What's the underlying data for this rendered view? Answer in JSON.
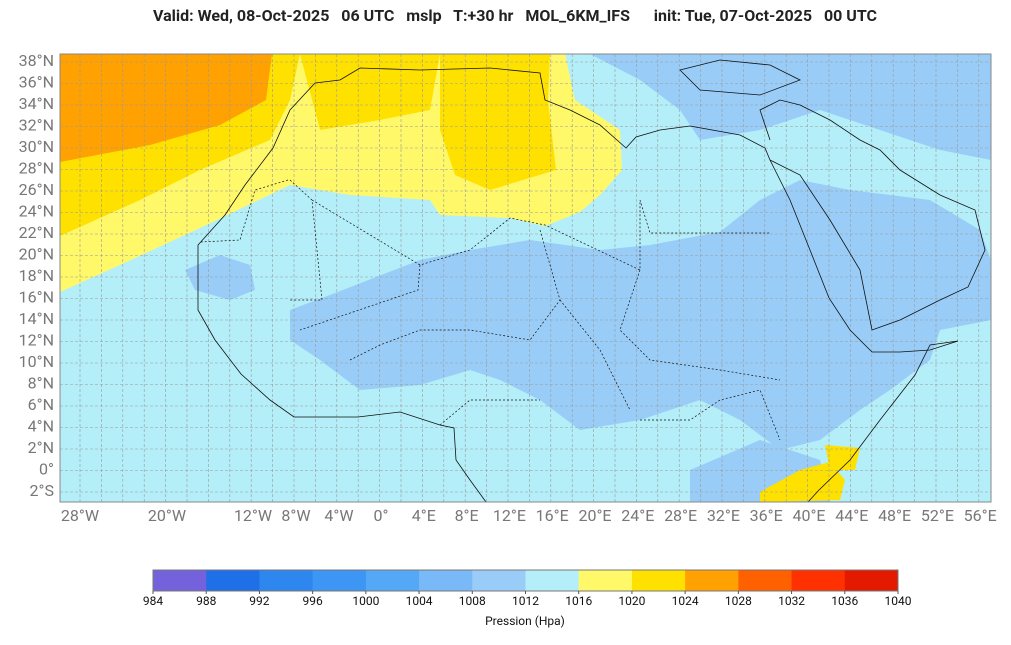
{
  "header": {
    "title": "Valid: Wed, 08-Oct-2025   06 UTC   mslp   T:+30 hr   MOL_6KM_IFS      init: Tue, 07-Oct-2025   00 UTC"
  },
  "map": {
    "lat_labels": [
      "38°N",
      "36°N",
      "34°N",
      "32°N",
      "30°N",
      "28°N",
      "26°N",
      "24°N",
      "22°N",
      "20°N",
      "18°N",
      "16°N",
      "14°N",
      "12°N",
      "10°N",
      "8°N",
      "6°N",
      "4°N",
      "2°N",
      "0°",
      "2°S"
    ],
    "lon_labels": [
      "28°W",
      "20°W",
      "12°W",
      "8°W",
      "4°W",
      "0°",
      "4°E",
      "8°E",
      "12°E",
      "16°E",
      "20°E",
      "24°E",
      "28°E",
      "32°E",
      "36°E",
      "40°E",
      "44°E",
      "48°E",
      "52°E",
      "56°E"
    ]
  },
  "colorbar": {
    "label": "Pression (Hpa)",
    "ticks": [
      984,
      988,
      992,
      996,
      1000,
      1004,
      1008,
      1012,
      1016,
      1020,
      1024,
      1028,
      1032,
      1036,
      1040
    ],
    "colors": [
      "#7462dc",
      "#1f6fe9",
      "#2e86ef",
      "#3d96f3",
      "#54a8f6",
      "#79b9f7",
      "#99cdf8",
      "#b4eef9",
      "#fff96a",
      "#ffe100",
      "#ffa100",
      "#ff6100",
      "#ff3100",
      "#e41a00"
    ]
  }
}
